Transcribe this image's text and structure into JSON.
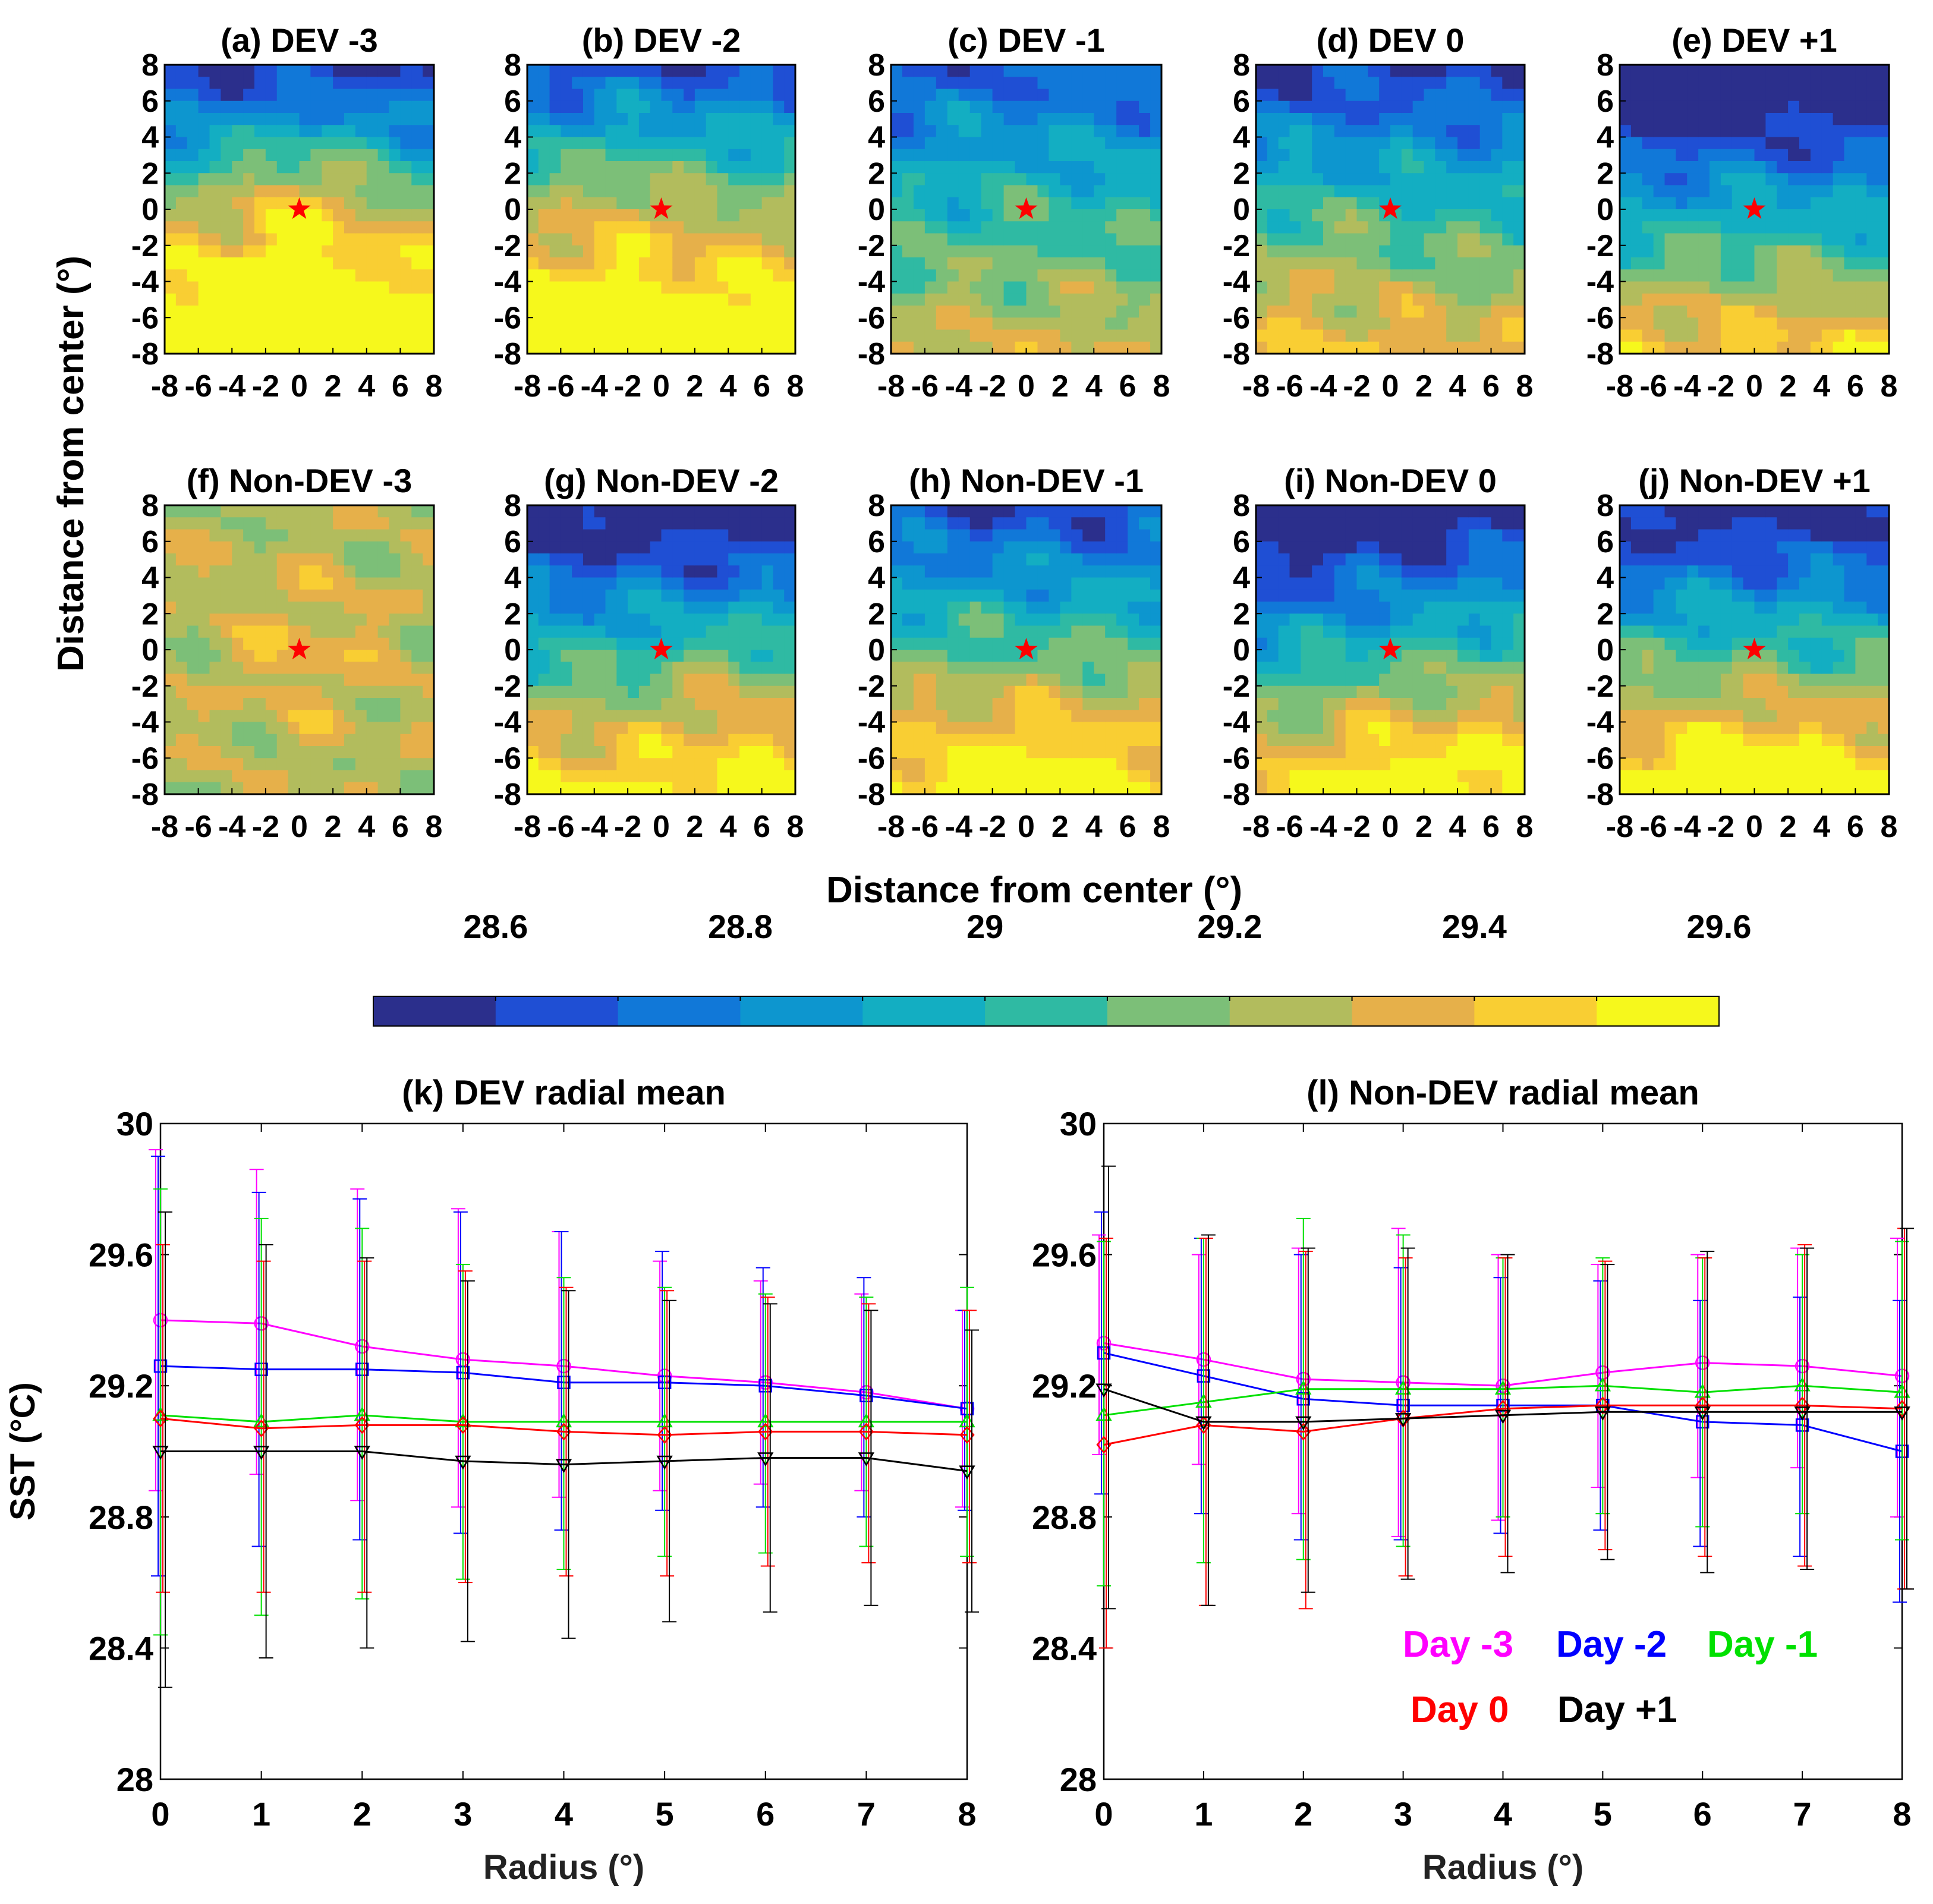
{
  "shared": {
    "map_ylabel": "Distance from center (°)",
    "map_xlabel": "Distance from center (°)",
    "map_ticks": [
      "-8",
      "-6",
      "-4",
      "-2",
      "0",
      "2",
      "4",
      "6",
      "8"
    ]
  },
  "colorbar": {
    "labels": [
      "28.6",
      "28.8",
      "29",
      "29.2",
      "29.4",
      "29.6"
    ],
    "label_values": [
      28.6,
      28.8,
      29.0,
      29.2,
      29.4,
      29.6
    ],
    "range": [
      28.5,
      29.6
    ],
    "step": 0.1,
    "colors": [
      "#2b2f8c",
      "#1f4fd4",
      "#1178d8",
      "#0d96cf",
      "#13aec2",
      "#2fbaa3",
      "#7cbf78",
      "#b2bc5d",
      "#e6b04a",
      "#f9ce33",
      "#f6f81c"
    ]
  },
  "panels": [
    {
      "title": "(a) DEV -3",
      "row": 0,
      "col": 0
    },
    {
      "title": "(b) DEV -2",
      "row": 0,
      "col": 1
    },
    {
      "title": "(c) DEV -1",
      "row": 0,
      "col": 2
    },
    {
      "title": "(d) DEV 0",
      "row": 0,
      "col": 3
    },
    {
      "title": "(e) DEV +1",
      "row": 0,
      "col": 4
    },
    {
      "title": "(f) Non-DEV -3",
      "row": 1,
      "col": 0
    },
    {
      "title": "(g) Non-DEV -2",
      "row": 1,
      "col": 1
    },
    {
      "title": "(h) Non-DEV -1",
      "row": 1,
      "col": 2
    },
    {
      "title": "(i) Non-DEV 0",
      "row": 1,
      "col": 3
    },
    {
      "title": "(j) Non-DEV +1",
      "row": 1,
      "col": 4
    }
  ],
  "chart_data": [
    {
      "type": "line",
      "title": "(k) DEV radial mean",
      "xlabel": "Radius (°)",
      "ylabel": "SST (°C)",
      "xlim": [
        0,
        8
      ],
      "ylim": [
        28,
        30
      ],
      "x": [
        0,
        1,
        2,
        3,
        4,
        5,
        6,
        7,
        8
      ],
      "xticks": [
        "0",
        "1",
        "2",
        "3",
        "4",
        "5",
        "6",
        "7",
        "8"
      ],
      "yticks": [
        "28",
        "28.4",
        "28.8",
        "29.2",
        "29.6",
        "30"
      ],
      "ytick_values": [
        28,
        28.4,
        28.8,
        29.2,
        29.6,
        30
      ],
      "series": [
        {
          "name": "Day -3",
          "color": "#ff00ff",
          "marker": "circle",
          "values": [
            29.4,
            29.39,
            29.32,
            29.28,
            29.26,
            29.23,
            29.21,
            29.18,
            29.13
          ],
          "err_high": [
            29.92,
            29.86,
            29.8,
            29.74,
            29.67,
            29.58,
            29.52,
            29.48,
            29.43
          ],
          "err_low": [
            28.88,
            28.93,
            28.85,
            28.83,
            28.86,
            28.88,
            28.9,
            28.88,
            28.83
          ]
        },
        {
          "name": "Day -2",
          "color": "#0000ff",
          "marker": "square",
          "values": [
            29.26,
            29.25,
            29.25,
            29.24,
            29.21,
            29.21,
            29.2,
            29.17,
            29.13
          ],
          "err_high": [
            29.9,
            29.79,
            29.77,
            29.73,
            29.67,
            29.61,
            29.56,
            29.53,
            29.43
          ],
          "err_low": [
            28.62,
            28.71,
            28.73,
            28.75,
            28.76,
            28.82,
            28.83,
            28.8,
            28.82
          ]
        },
        {
          "name": "Day -1",
          "color": "#00e000",
          "marker": "triangle-up",
          "values": [
            29.11,
            29.09,
            29.11,
            29.09,
            29.09,
            29.09,
            29.09,
            29.09,
            29.09
          ],
          "err_high": [
            29.8,
            29.71,
            29.68,
            29.57,
            29.53,
            29.5,
            29.48,
            29.47,
            29.5
          ],
          "err_low": [
            28.44,
            28.5,
            28.55,
            28.61,
            28.64,
            28.68,
            28.69,
            28.71,
            28.68
          ]
        },
        {
          "name": "Day 0",
          "color": "#ff0000",
          "marker": "diamond",
          "values": [
            29.1,
            29.07,
            29.08,
            29.08,
            29.06,
            29.05,
            29.06,
            29.06,
            29.05
          ],
          "err_high": [
            29.63,
            29.58,
            29.58,
            29.55,
            29.5,
            29.49,
            29.47,
            29.45,
            29.43
          ],
          "err_low": [
            28.57,
            28.57,
            28.57,
            28.6,
            28.62,
            28.62,
            28.65,
            28.66,
            28.66
          ]
        },
        {
          "name": "Day +1",
          "color": "#000000",
          "marker": "triangle-down",
          "values": [
            29.0,
            29.0,
            29.0,
            28.97,
            28.96,
            28.97,
            28.98,
            28.98,
            28.94
          ],
          "err_high": [
            29.73,
            29.63,
            29.59,
            29.52,
            29.49,
            29.46,
            29.45,
            29.43,
            29.37
          ],
          "err_low": [
            28.28,
            28.37,
            28.4,
            28.42,
            28.43,
            28.48,
            28.51,
            28.53,
            28.51
          ]
        }
      ]
    },
    {
      "type": "line",
      "title": "(l) Non-DEV radial mean",
      "xlabel": "Radius (°)",
      "ylabel": "",
      "xlim": [
        0,
        8
      ],
      "ylim": [
        28,
        30
      ],
      "x": [
        0,
        1,
        2,
        3,
        4,
        5,
        6,
        7,
        8
      ],
      "xticks": [
        "0",
        "1",
        "2",
        "3",
        "4",
        "5",
        "6",
        "7",
        "8"
      ],
      "yticks": [
        "28",
        "28.4",
        "28.8",
        "29.2",
        "29.6",
        "30"
      ],
      "ytick_values": [
        28,
        28.4,
        28.8,
        29.2,
        29.6,
        30
      ],
      "legend": {
        "position": "lower-right",
        "rows": [
          [
            "Day -3",
            "Day -2",
            "Day -1"
          ],
          [
            "Day 0",
            "Day +1"
          ]
        ]
      },
      "series": [
        {
          "name": "Day -3",
          "color": "#ff00ff",
          "marker": "circle",
          "values": [
            29.33,
            29.28,
            29.22,
            29.21,
            29.2,
            29.24,
            29.27,
            29.26,
            29.23
          ],
          "err_high": [
            29.66,
            29.6,
            29.62,
            29.68,
            29.6,
            29.57,
            29.6,
            29.62,
            29.65
          ],
          "err_low": [
            28.99,
            28.96,
            28.81,
            28.74,
            28.79,
            28.89,
            28.92,
            28.95,
            28.8
          ]
        },
        {
          "name": "Day -2",
          "color": "#0000ff",
          "marker": "square",
          "values": [
            29.3,
            29.23,
            29.16,
            29.14,
            29.14,
            29.14,
            29.09,
            29.08,
            29.0
          ],
          "err_high": [
            29.73,
            29.65,
            29.6,
            29.56,
            29.53,
            29.52,
            29.46,
            29.47,
            29.46
          ],
          "err_low": [
            28.87,
            28.81,
            28.73,
            28.73,
            28.75,
            28.76,
            28.71,
            28.68,
            28.54
          ]
        },
        {
          "name": "Day -1",
          "color": "#00e000",
          "marker": "triangle-up",
          "values": [
            29.11,
            29.15,
            29.19,
            29.19,
            29.19,
            29.2,
            29.18,
            29.2,
            29.18
          ],
          "err_high": [
            29.64,
            29.65,
            29.71,
            29.66,
            29.59,
            29.59,
            29.59,
            29.6,
            29.64
          ],
          "err_low": [
            28.59,
            28.66,
            28.67,
            28.71,
            28.8,
            28.81,
            28.77,
            28.81,
            28.73
          ]
        },
        {
          "name": "Day 0",
          "color": "#ff0000",
          "marker": "diamond",
          "values": [
            29.02,
            29.08,
            29.06,
            29.1,
            29.13,
            29.14,
            29.14,
            29.14,
            29.13
          ],
          "err_high": [
            29.65,
            29.65,
            29.61,
            29.59,
            29.59,
            29.58,
            29.59,
            29.63,
            29.68
          ],
          "err_low": [
            28.4,
            28.53,
            28.52,
            28.62,
            28.68,
            28.7,
            28.68,
            28.65,
            28.58
          ]
        },
        {
          "name": "Day +1",
          "color": "#000000",
          "marker": "triangle-down",
          "values": [
            29.19,
            29.09,
            29.09,
            29.1,
            29.11,
            29.12,
            29.12,
            29.12,
            29.12
          ],
          "err_high": [
            29.87,
            29.66,
            29.62,
            29.62,
            29.6,
            29.57,
            29.61,
            29.62,
            29.68
          ],
          "err_low": [
            28.52,
            28.53,
            28.57,
            28.61,
            28.63,
            28.67,
            28.63,
            28.64,
            28.58
          ]
        }
      ]
    }
  ]
}
